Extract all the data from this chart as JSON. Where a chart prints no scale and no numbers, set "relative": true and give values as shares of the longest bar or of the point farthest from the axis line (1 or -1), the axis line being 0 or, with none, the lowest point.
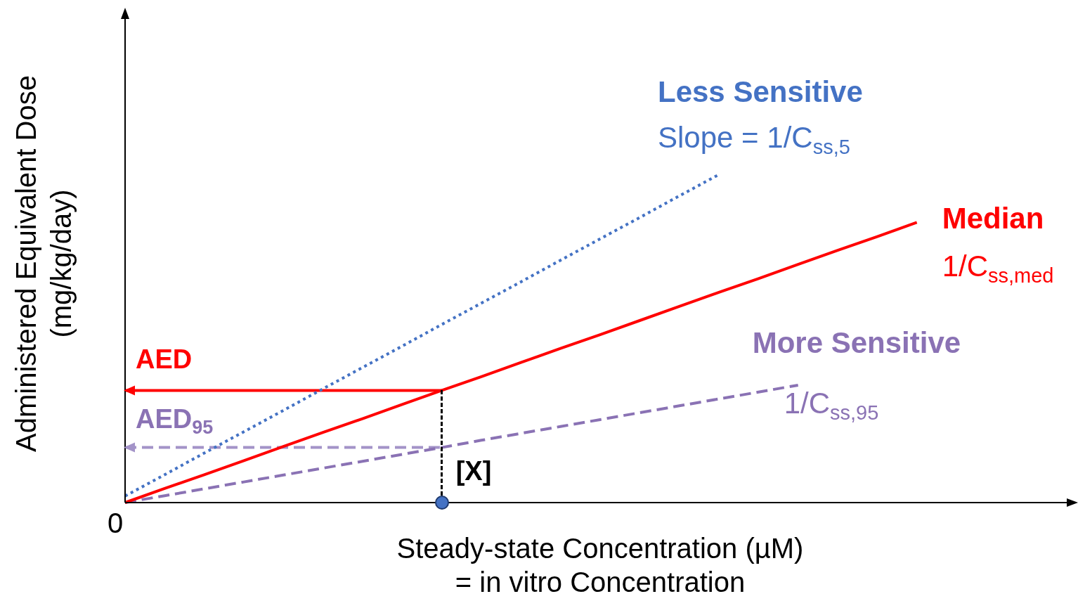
{
  "chart_data": {
    "type": "line",
    "relative": true,
    "xlabel": "Steady-state Concentration (µM)\n= in vitro Concentration",
    "ylabel": "Administered Equivalent Dose\n(mg/kg/day)",
    "legend": false,
    "categories": [
      null,
      null,
      null,
      null,
      null,
      null,
      null,
      null,
      null,
      null,
      null,
      null,
      null,
      null,
      null,
      null,
      null,
      null,
      null,
      null,
      null,
      null,
      null,
      null,
      null
    ],
    "series": [
      {
        "name": "Less Sensitive",
        "color": "#4472c4",
        "line_style": "dotted",
        "values": [
          0.02,
          0.085,
          0.151,
          0.216,
          0.281,
          0.347,
          0.412,
          0.477,
          0.543,
          0.608,
          0.673,
          0.739,
          0.804,
          0.869,
          0.935,
          1,
          null,
          null,
          null,
          null,
          null,
          null,
          null,
          null,
          null
        ]
      },
      {
        "name": "Median",
        "color": "#ff0000",
        "line_style": "solid",
        "values": [
          0,
          0.043,
          0.085,
          0.128,
          0.171,
          0.214,
          0.256,
          0.299,
          0.342,
          0.384,
          0.427,
          0.47,
          0.512,
          0.555,
          0.598,
          0.641,
          0.683,
          0.726,
          0.769,
          0.811,
          0.854,
          null,
          null,
          null,
          null
        ]
      },
      {
        "name": "More Sensitive",
        "color": "#8a72b4",
        "line_style": "dashed",
        "values": [
          0,
          0.021,
          0.042,
          0.063,
          0.084,
          0.105,
          0.126,
          0.147,
          0.168,
          0.19,
          0.211,
          0.232,
          0.253,
          0.274,
          0.295,
          0.316,
          0.337,
          0.358,
          null,
          null,
          null,
          null,
          null,
          null,
          null
        ]
      },
      {
        "color": "#ff0000",
        "line_style": "solid",
        "values": [
          0.342,
          0.342,
          0.342,
          0.342,
          0.342,
          0.342,
          0.342,
          0.342,
          0.342,
          null,
          null,
          null,
          null,
          null,
          null,
          null,
          null,
          null,
          null,
          null,
          null,
          null,
          null,
          null,
          null
        ]
      },
      {
        "color": "#a393c8",
        "line_style": "dashed",
        "values": [
          0.168,
          0.168,
          0.168,
          0.168,
          0.168,
          0.168,
          0.168,
          0.168,
          0.168,
          null,
          null,
          null,
          null,
          null,
          null,
          null,
          null,
          null,
          null,
          null,
          null,
          null,
          null,
          null,
          null
        ]
      }
    ],
    "annotations": [
      "Slope = 1/C$_{ss,5}$",
      "1/C$_{ss,med}$",
      "1/C$_{ss,95}$",
      "0",
      "[X]",
      {
        "text": "AED",
        "y": 0.342
      },
      {
        "text": "AED$_{95}$",
        "y": 0.168
      }
    ]
  }
}
